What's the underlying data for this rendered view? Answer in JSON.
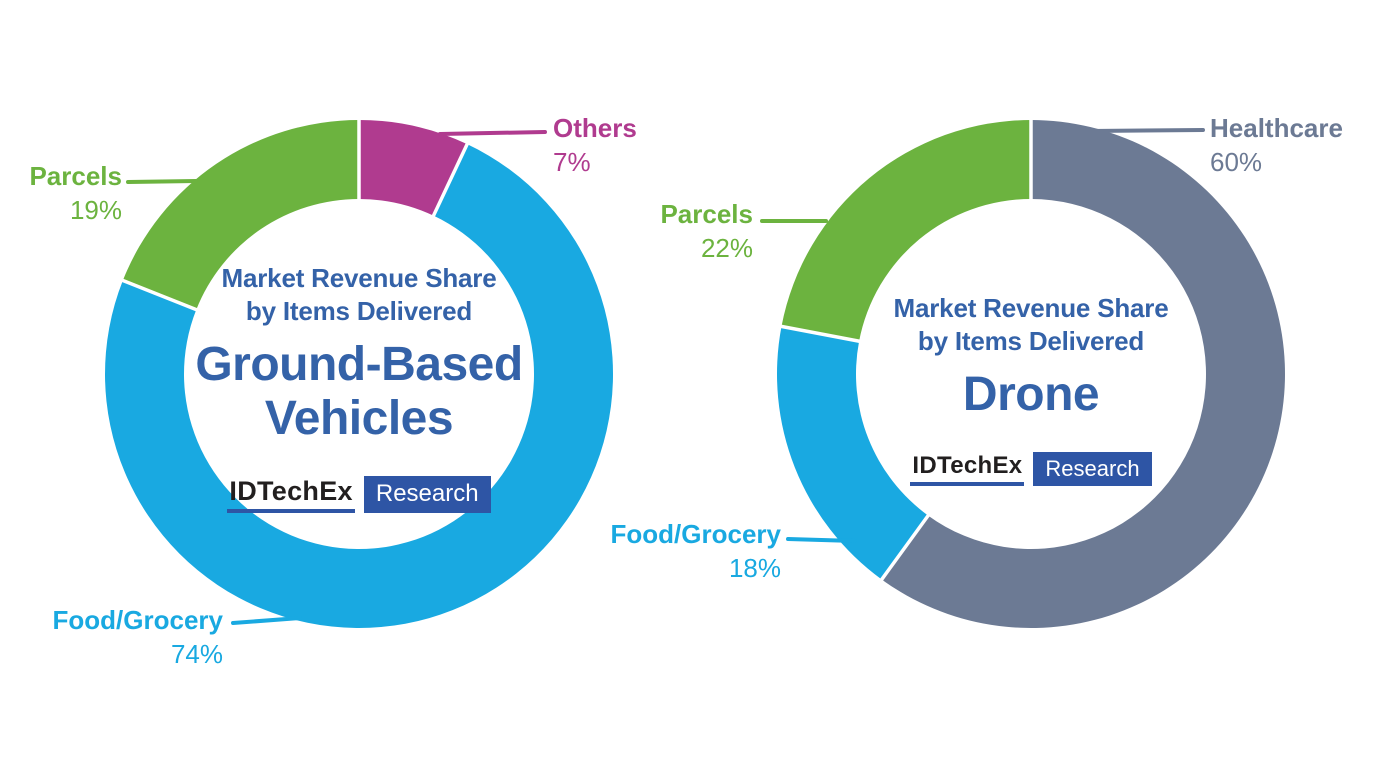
{
  "page": {
    "background": "#ffffff"
  },
  "colors": {
    "cyan": "#19A9E1",
    "green": "#6CB33F",
    "magenta": "#B03B8F",
    "slate": "#6C7A94",
    "blue": "#3462A8",
    "logo_blue": "#2E55A5",
    "logo_black": "#221F1F",
    "separator": "#FFFFFF"
  },
  "logo": {
    "brand": "IDTechEx",
    "suffix": "Research"
  },
  "chart_data": [
    {
      "type": "pie",
      "subtype": "donut",
      "subtitle_line1": "Market Revenue Share",
      "subtitle_line2": "by Items Delivered",
      "headline_line1": "Ground-Based",
      "headline_line2": "Vehicles",
      "start_angle_deg": 0,
      "direction": "clockwise",
      "legend_position": "callouts",
      "segments": [
        {
          "label": "Others",
          "value": 7,
          "display": "7%",
          "color_key": "magenta"
        },
        {
          "label": "Food/Grocery",
          "value": 74,
          "display": "74%",
          "color_key": "cyan"
        },
        {
          "label": "Parcels",
          "value": 19,
          "display": "19%",
          "color_key": "green"
        }
      ]
    },
    {
      "type": "pie",
      "subtype": "donut",
      "subtitle_line1": "Market Revenue Share",
      "subtitle_line2": "by Items Delivered",
      "headline_line1": "Drone",
      "headline_line2": "",
      "start_angle_deg": 0,
      "direction": "clockwise",
      "legend_position": "callouts",
      "segments": [
        {
          "label": "Healthcare",
          "value": 60,
          "display": "60%",
          "color_key": "slate"
        },
        {
          "label": "Food/Grocery",
          "value": 18,
          "display": "18%",
          "color_key": "cyan"
        },
        {
          "label": "Parcels",
          "value": 22,
          "display": "22%",
          "color_key": "green"
        }
      ]
    }
  ]
}
